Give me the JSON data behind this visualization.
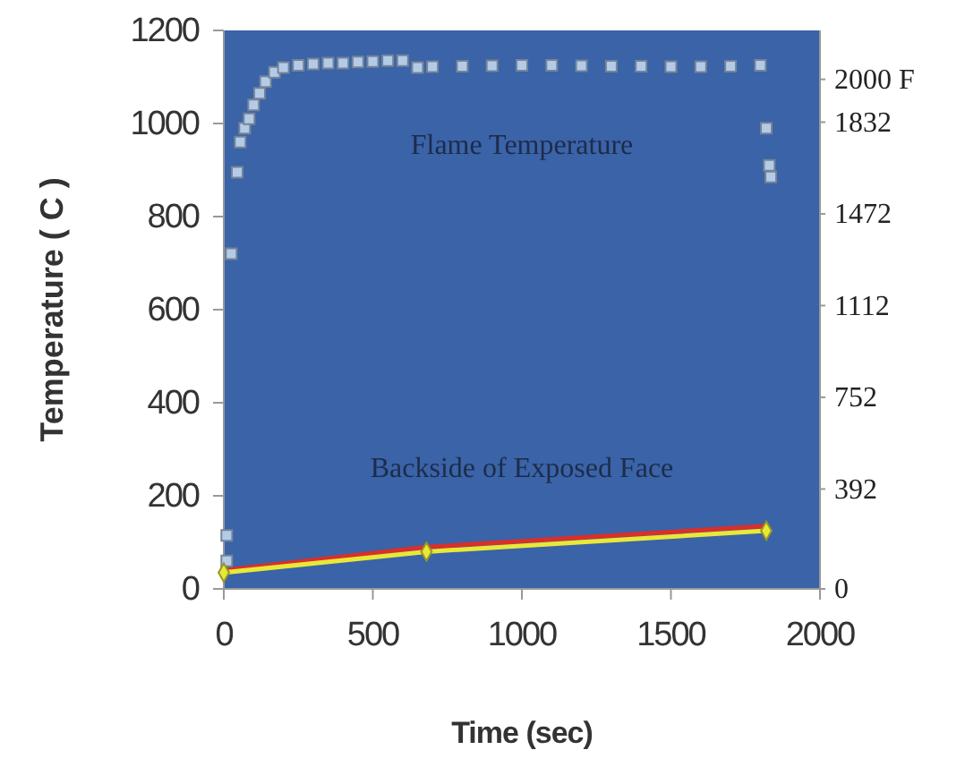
{
  "chart_data": {
    "type": "scatter",
    "xlabel": "Time (sec)",
    "ylabel": "Temperature ( C )",
    "xlim": [
      0,
      2000
    ],
    "xticks": [
      0,
      500,
      1000,
      1500,
      2000
    ],
    "ylim": [
      0,
      1200
    ],
    "yticks": [
      0,
      200,
      400,
      600,
      800,
      1000,
      1200
    ],
    "y2lim": [
      0,
      2192
    ],
    "y2ticks": [
      0,
      392,
      752,
      1112,
      1472,
      1832,
      {
        "value": 2000,
        "label": "2000 F"
      }
    ],
    "grid": false,
    "legend": false,
    "series": [
      {
        "name": "Flame Temperature",
        "marker": "square",
        "color": "#b4cbe8",
        "x": [
          10,
          10,
          25,
          45,
          55,
          70,
          85,
          100,
          120,
          140,
          170,
          200,
          250,
          300,
          350,
          400,
          450,
          500,
          550,
          600,
          650,
          700,
          800,
          900,
          1000,
          1100,
          1200,
          1300,
          1400,
          1500,
          1600,
          1700,
          1800,
          1820,
          1830,
          1835
        ],
        "values": [
          60,
          115,
          720,
          895,
          960,
          990,
          1010,
          1040,
          1065,
          1090,
          1110,
          1120,
          1125,
          1128,
          1130,
          1130,
          1132,
          1133,
          1135,
          1135,
          1120,
          1122,
          1123,
          1124,
          1125,
          1125,
          1124,
          1123,
          1123,
          1122,
          1122,
          1123,
          1125,
          990,
          910,
          885
        ]
      },
      {
        "type": "line",
        "marker": "none",
        "color": "#d8302a",
        "x": [
          0,
          680,
          1820
        ],
        "values": [
          40,
          90,
          135
        ]
      },
      {
        "name": "Backside of Exposed Face",
        "type": "line",
        "marker": "diamond",
        "color": "#e8e838",
        "x": [
          0,
          680,
          1820
        ],
        "values": [
          35,
          80,
          125
        ]
      }
    ]
  }
}
